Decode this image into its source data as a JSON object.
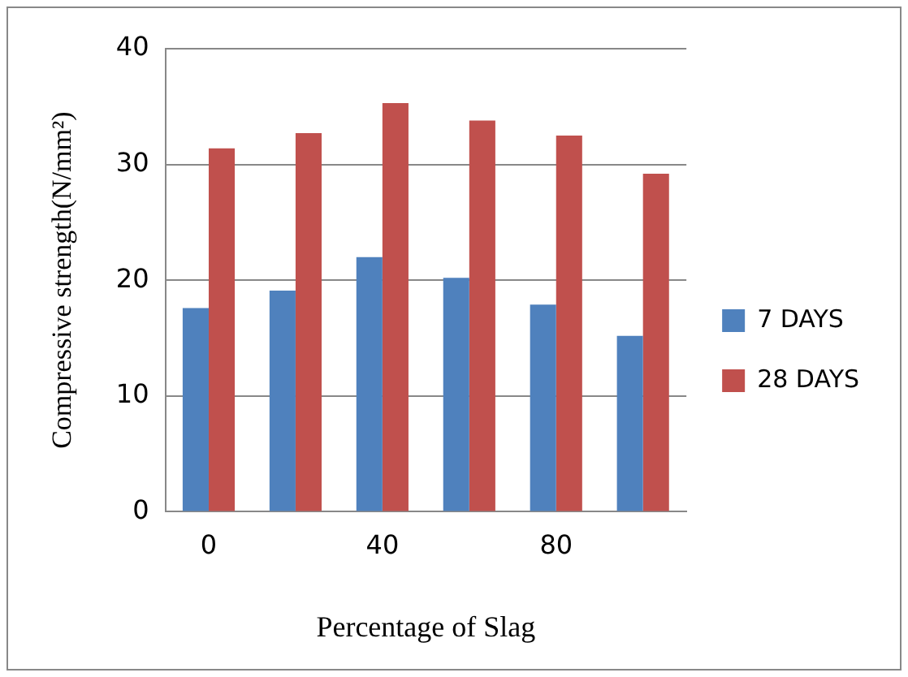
{
  "chart_data": {
    "type": "bar",
    "xlabel": "Percentage of Slag",
    "ylabel": "Compressive strength(N/mm²)",
    "categories": [
      "0",
      null,
      "40",
      null,
      "80",
      null
    ],
    "series": [
      {
        "name": "7 DAYS",
        "color": "#4f81bd",
        "values": [
          17.6,
          19.1,
          22.0,
          20.2,
          17.9,
          15.2
        ]
      },
      {
        "name": "28 DAYS",
        "color": "#c0504d",
        "values": [
          31.4,
          32.7,
          35.3,
          33.8,
          32.5,
          29.2
        ]
      }
    ],
    "ylim": [
      0,
      40
    ],
    "yticks": [
      0,
      10,
      20,
      30,
      40
    ],
    "grid": "y",
    "legend": "right"
  }
}
